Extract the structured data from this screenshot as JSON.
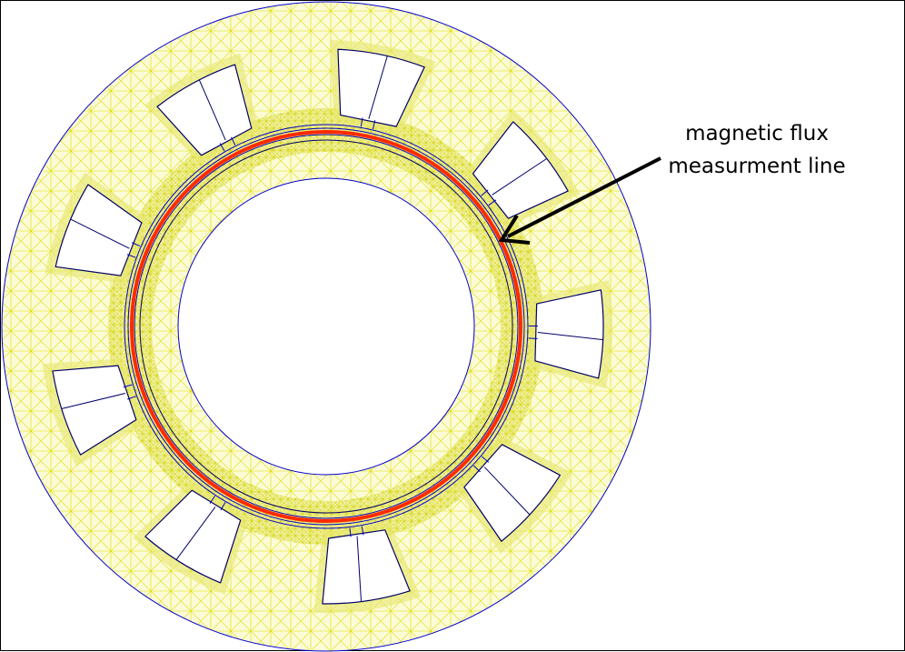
{
  "annotation": {
    "line1": "magnetic flux",
    "line2": "measurment line"
  },
  "colors": {
    "mesh": "#dede00",
    "mesh_fill": "#f4f4a8",
    "boundary": "#0000cc",
    "flux_line": "#ff2a00",
    "arrow": "#000000",
    "background": "#ffffff"
  },
  "geometry_counts": {
    "stator_slots": 9
  }
}
